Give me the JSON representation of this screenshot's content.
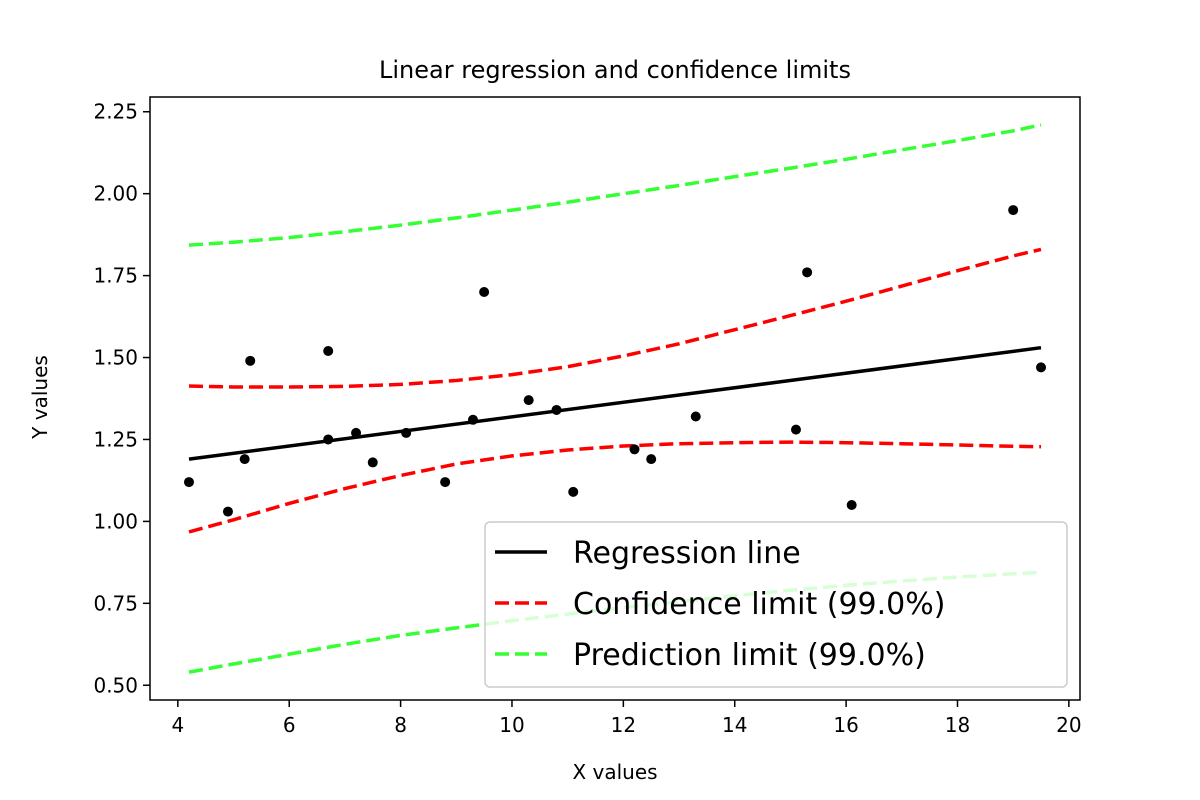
{
  "chart_data": {
    "type": "scatter",
    "title": "Linear regression and confidence limits",
    "xlabel": "X values",
    "ylabel": "Y values",
    "xlim": [
      3.5,
      20.2
    ],
    "ylim": [
      0.455,
      2.295
    ],
    "xticks": [
      4,
      6,
      8,
      10,
      12,
      14,
      16,
      18,
      20
    ],
    "yticks": [
      0.5,
      0.75,
      1.0,
      1.25,
      1.5,
      1.75,
      2.0,
      2.25
    ],
    "xtick_labels": [
      "4",
      "6",
      "8",
      "10",
      "12",
      "14",
      "16",
      "18",
      "20"
    ],
    "ytick_labels": [
      "0.50",
      "0.75",
      "1.00",
      "1.25",
      "1.50",
      "1.75",
      "2.00",
      "2.25"
    ],
    "grid": false,
    "legend_position": "bottom-right",
    "points": {
      "color": "#000000",
      "x": [
        4.2,
        4.9,
        5.2,
        5.3,
        6.7,
        6.7,
        7.2,
        7.5,
        8.1,
        8.8,
        9.3,
        9.5,
        10.3,
        10.8,
        11.1,
        12.2,
        12.5,
        13.3,
        15.1,
        15.3,
        16.1,
        19.0,
        19.5
      ],
      "y": [
        1.12,
        1.03,
        1.19,
        1.49,
        1.52,
        1.25,
        1.27,
        1.18,
        1.27,
        1.12,
        1.31,
        1.7,
        1.37,
        1.34,
        1.09,
        1.22,
        1.19,
        1.32,
        1.28,
        1.76,
        1.05,
        1.95,
        1.47
      ]
    },
    "series": [
      {
        "name": "Regression line",
        "color": "#000000",
        "style": "solid",
        "x": [
          4.2,
          19.5
        ],
        "y": [
          1.19,
          1.53
        ]
      },
      {
        "name": "Confidence limit (99.0%)",
        "color": "#ff0000",
        "style": "dashed",
        "x": [
          4.2,
          5.0,
          6.0,
          7.0,
          8.0,
          9.0,
          10.0,
          11.0,
          12.0,
          13.0,
          14.0,
          15.0,
          16.0,
          17.0,
          18.0,
          19.0,
          19.5
        ],
        "y": [
          1.413,
          1.41,
          1.41,
          1.412,
          1.418,
          1.43,
          1.448,
          1.472,
          1.505,
          1.542,
          1.585,
          1.628,
          1.672,
          1.718,
          1.765,
          1.81,
          1.83
        ]
      },
      {
        "name": "",
        "color": "#ff0000",
        "style": "dashed",
        "x": [
          4.2,
          5.0,
          6.0,
          7.0,
          8.0,
          9.0,
          10.0,
          11.0,
          12.0,
          13.0,
          14.0,
          15.0,
          16.0,
          17.0,
          18.0,
          19.0,
          19.5
        ],
        "y": [
          0.968,
          1.005,
          1.055,
          1.1,
          1.14,
          1.175,
          1.2,
          1.218,
          1.23,
          1.237,
          1.24,
          1.242,
          1.24,
          1.237,
          1.233,
          1.229,
          1.228
        ]
      },
      {
        "name": "Prediction limit (99.0%)",
        "color": "#33ff33",
        "style": "dashed",
        "x": [
          4.2,
          5.0,
          6.0,
          7.0,
          8.0,
          9.0,
          10.0,
          11.0,
          12.0,
          13.0,
          14.0,
          15.0,
          16.0,
          17.0,
          18.0,
          19.0,
          19.5
        ],
        "y": [
          1.843,
          1.852,
          1.866,
          1.884,
          1.904,
          1.926,
          1.95,
          1.974,
          2.0,
          2.025,
          2.052,
          2.078,
          2.105,
          2.134,
          2.162,
          2.192,
          2.21
        ]
      },
      {
        "name": "",
        "color": "#33ff33",
        "style": "dashed",
        "x": [
          4.2,
          5.0,
          6.0,
          7.0,
          8.0,
          9.0,
          10.0,
          11.0,
          12.0,
          13.0,
          14.0,
          15.0,
          16.0,
          17.0,
          18.0,
          19.0,
          19.5
        ],
        "y": [
          0.54,
          0.565,
          0.595,
          0.625,
          0.652,
          0.675,
          0.697,
          0.717,
          0.737,
          0.755,
          0.773,
          0.79,
          0.805,
          0.818,
          0.83,
          0.84,
          0.845
        ]
      }
    ]
  }
}
